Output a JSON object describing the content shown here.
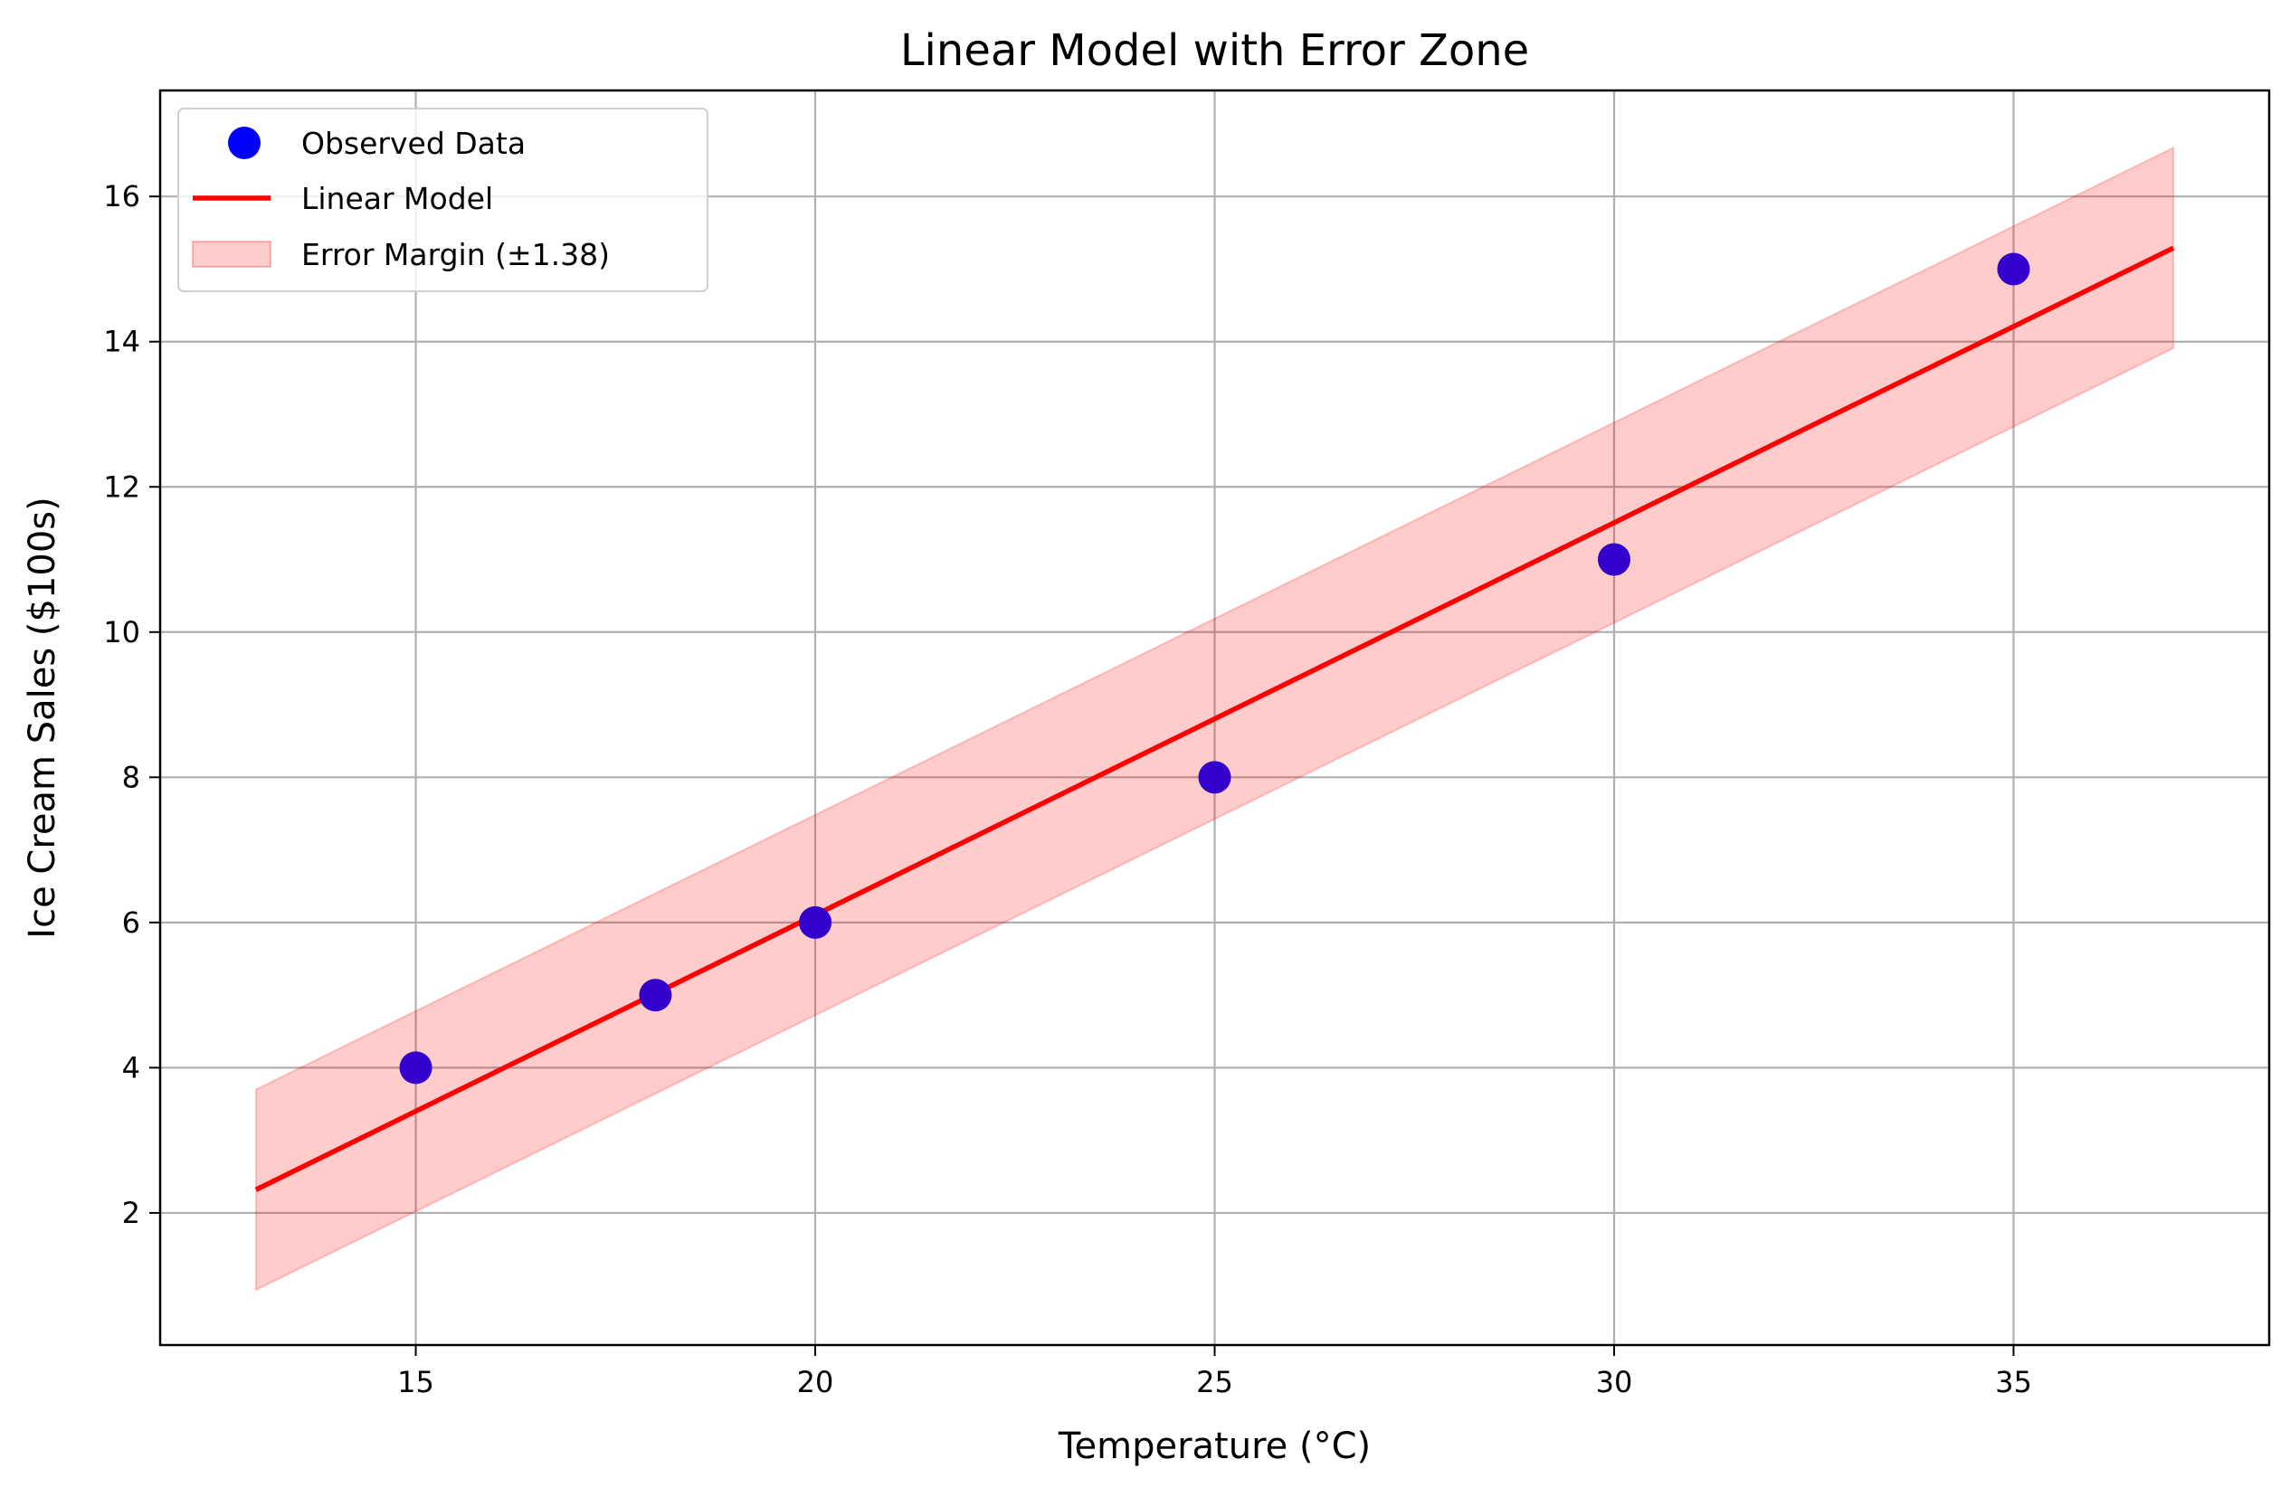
{
  "chart_data": {
    "type": "scatter",
    "title": "Linear Model with Error Zone",
    "xlabel": "Temperature (°C)",
    "ylabel": "Ice Cream Sales ($100s)",
    "xlim": [
      11.8,
      38.2
    ],
    "ylim": [
      0.18,
      17.46
    ],
    "x_ticks": [
      15,
      20,
      25,
      30,
      35
    ],
    "y_ticks": [
      2,
      4,
      6,
      8,
      10,
      12,
      14,
      16
    ],
    "x_tick_labels": [
      "15",
      "20",
      "25",
      "30",
      "35"
    ],
    "y_tick_labels": [
      "2",
      "4",
      "6",
      "8",
      "10",
      "12",
      "14",
      "16"
    ],
    "grid": true,
    "legend_position": "top-left",
    "series": [
      {
        "name": "Observed Data",
        "kind": "scatter",
        "color": "#0000ff",
        "x": [
          15,
          18,
          20,
          25,
          30,
          35
        ],
        "y": [
          4,
          5,
          6,
          8,
          11,
          15
        ]
      },
      {
        "name": "Linear Model",
        "kind": "line",
        "color": "#ff0000",
        "x": [
          13,
          37
        ],
        "y": [
          2.32,
          15.29
        ]
      },
      {
        "name": "Error Margin (±1.38)",
        "kind": "band",
        "color": "#ff0000",
        "x": [
          13,
          37
        ],
        "lower": [
          0.94,
          13.91
        ],
        "upper": [
          3.7,
          16.67
        ]
      }
    ]
  }
}
